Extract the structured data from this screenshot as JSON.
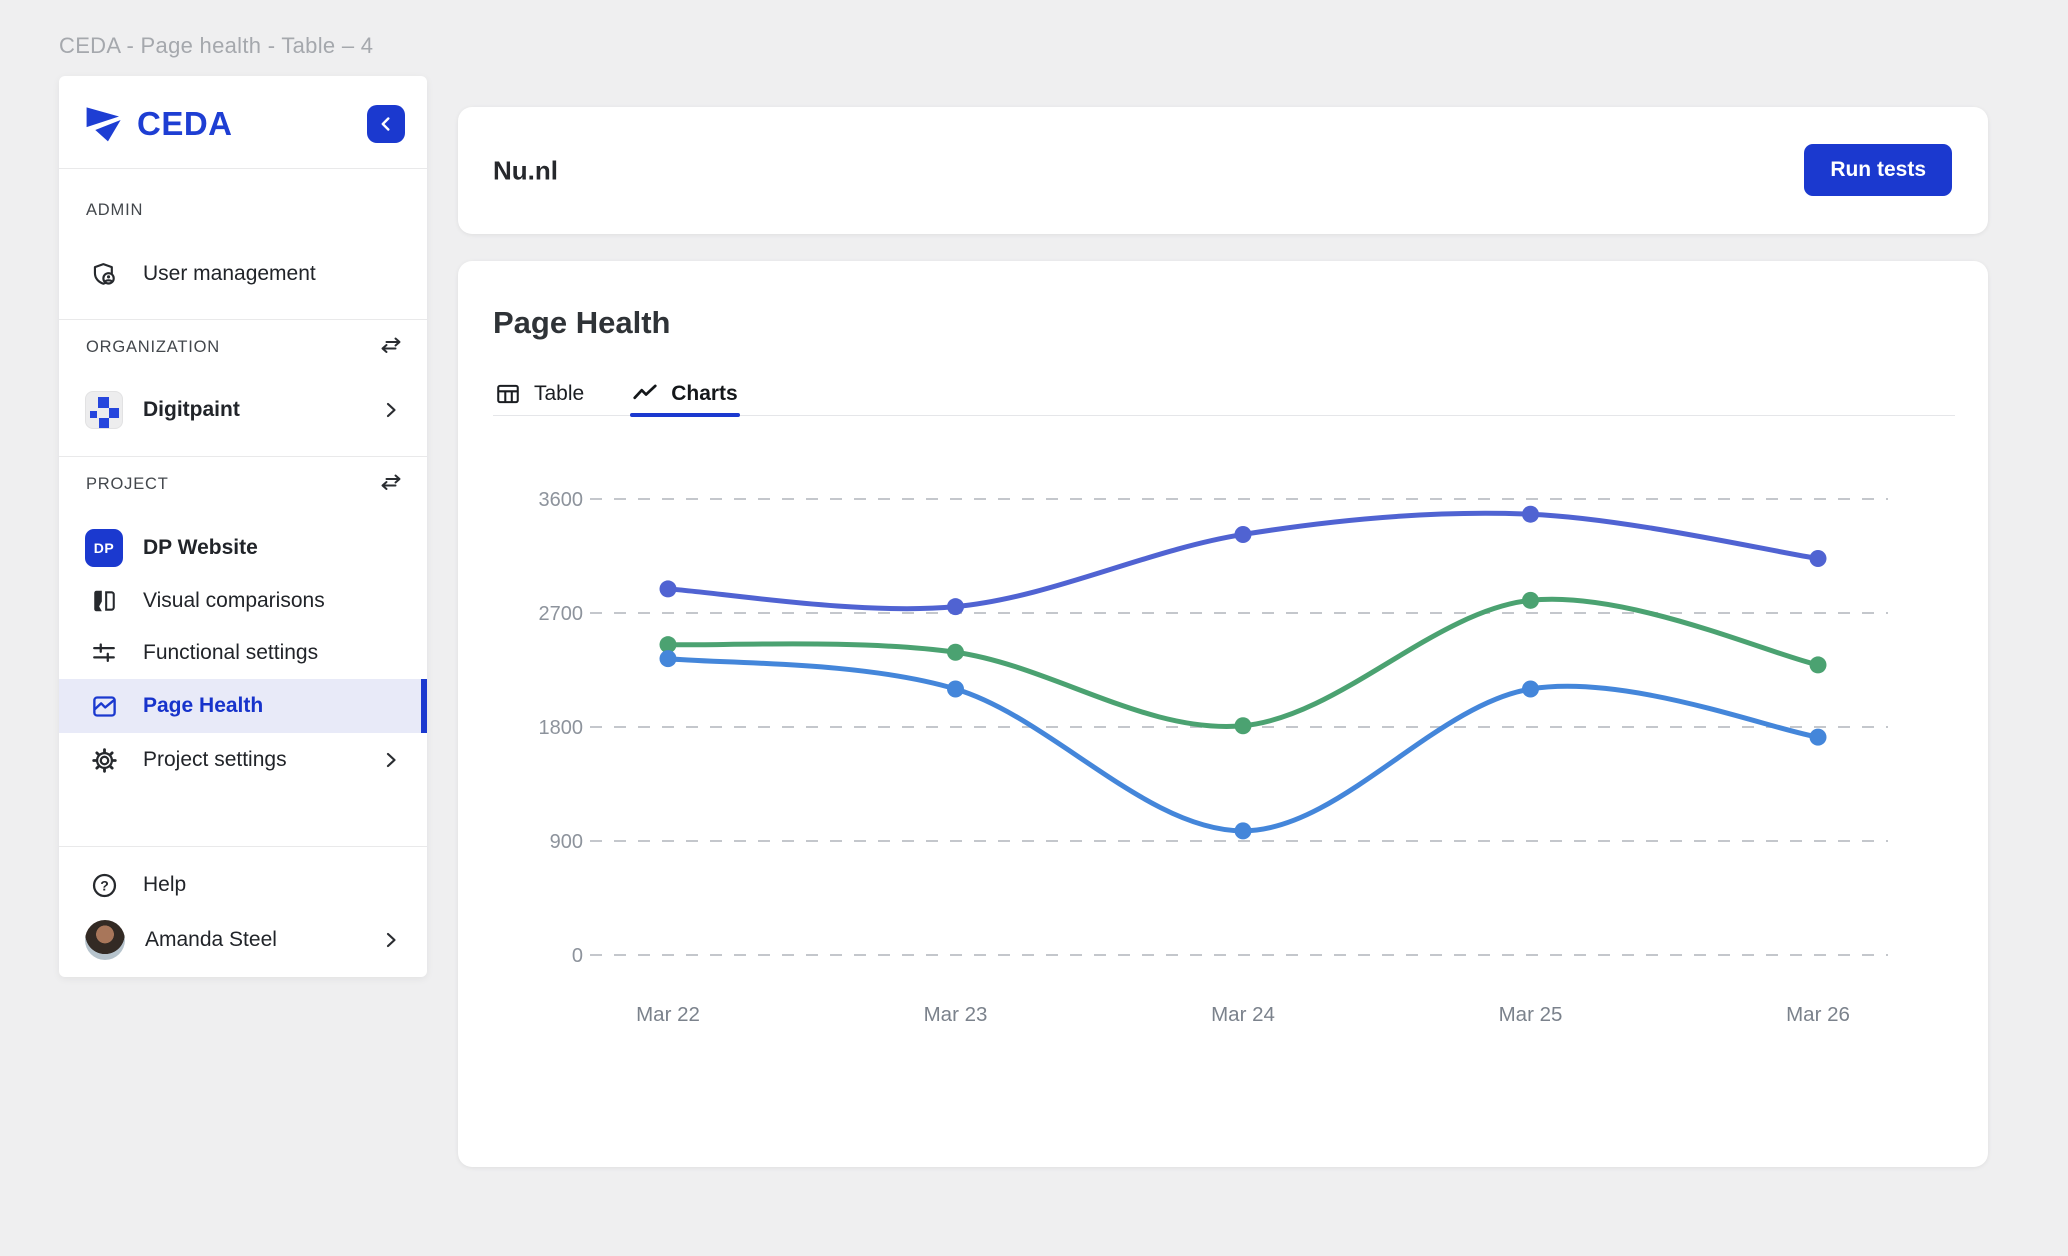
{
  "window": {
    "title": "CEDA - Page health - Table – 4"
  },
  "sidebar": {
    "brand": "CEDA",
    "sections": {
      "admin_label": "ADMIN",
      "organization_label": "ORGANIZATION",
      "project_label": "PROJECT"
    },
    "items": {
      "user_management": "User management",
      "organization_name": "Digitpaint",
      "dp_badge": "DP",
      "project_name": "DP Website",
      "visual_comparisons": "Visual comparisons",
      "functional_settings": "Functional settings",
      "page_health": "Page Health",
      "project_settings": "Project settings",
      "help": "Help",
      "user_name": "Amanda Steel"
    }
  },
  "header_card": {
    "title": "Nu.nl",
    "run_tests_label": "Run tests"
  },
  "content_card": {
    "title": "Page Health",
    "tabs": [
      {
        "label": "Table",
        "active": false
      },
      {
        "label": "Charts",
        "active": true
      }
    ]
  },
  "colors": {
    "brand_blue": "#1b39cf",
    "selected_item_bg": "#e8eaf8",
    "page_bg": "#efeff0",
    "gridline": "#c4c7cc",
    "y_axis_text": "#8d939c",
    "x_axis_text": "#7b828c"
  },
  "chart_data": {
    "type": "line",
    "title": "Page Health",
    "x": [
      "Mar 22",
      "Mar 23",
      "Mar 24",
      "Mar 25",
      "Mar 26"
    ],
    "series": [
      {
        "name": "indigo",
        "color": "#5063d2",
        "values": [
          2890,
          2750,
          3320,
          3480,
          3130
        ]
      },
      {
        "name": "green",
        "color": "#4ba271",
        "values": [
          2450,
          2390,
          1810,
          2800,
          2290
        ]
      },
      {
        "name": "blue",
        "color": "#4486da",
        "values": [
          2340,
          2100,
          980,
          2100,
          1720
        ]
      }
    ],
    "ylim": [
      0,
      3600
    ],
    "yticks": [
      0,
      900,
      1800,
      2700,
      3600
    ],
    "grid": "horizontal-dashed",
    "legend": "none",
    "smooth": true
  }
}
